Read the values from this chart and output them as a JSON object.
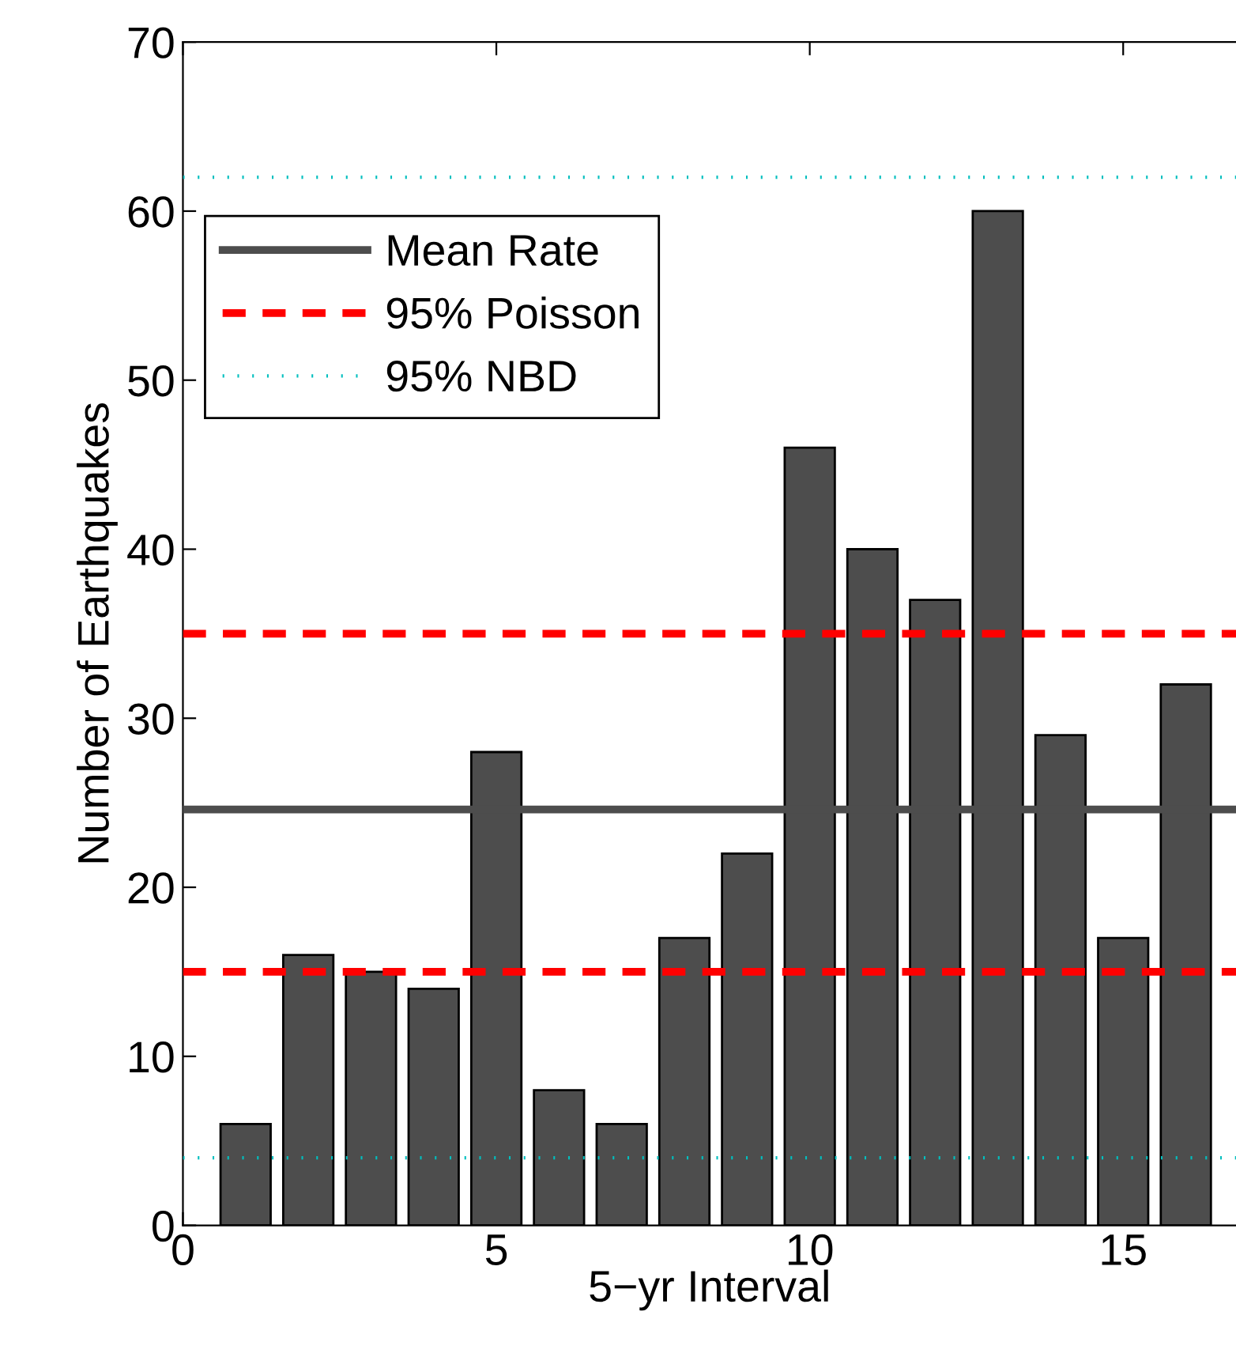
{
  "chart_data": {
    "type": "bar",
    "xlabel": "5−yr Interval",
    "ylabel": "Number of Earthquakes",
    "x": [
      1,
      2,
      3,
      4,
      5,
      6,
      7,
      8,
      9,
      10,
      11,
      12,
      13,
      14,
      15,
      16
    ],
    "values": [
      6,
      16,
      15,
      14,
      28,
      8,
      6,
      17,
      22,
      46,
      40,
      37,
      60,
      29,
      17,
      32
    ],
    "color": "#4d4d4d",
    "xlim": [
      0,
      16.8
    ],
    "xticks": [
      0,
      5,
      10,
      15
    ],
    "ylim": [
      0,
      70
    ],
    "yticks": [
      0,
      10,
      20,
      30,
      40,
      50,
      60,
      70
    ],
    "ref_lines": [
      {
        "axis": "y",
        "value": 24.6,
        "label": "Mean Rate",
        "color": "#4d4d4d",
        "line_style": "solid"
      },
      {
        "axis": "y",
        "value": 35,
        "label": "95% Poisson",
        "color": "#ff0000",
        "line_style": "dashed"
      },
      {
        "axis": "y",
        "value": 15,
        "color": "#ff0000",
        "line_style": "dashed"
      },
      {
        "axis": "y",
        "value": 62,
        "label": "95% NBD",
        "color": "#00bfbf",
        "line_style": "dotted"
      },
      {
        "axis": "y",
        "value": 4,
        "color": "#00bfbf",
        "line_style": "dotted"
      }
    ],
    "legend": "top left",
    "grid": false
  }
}
